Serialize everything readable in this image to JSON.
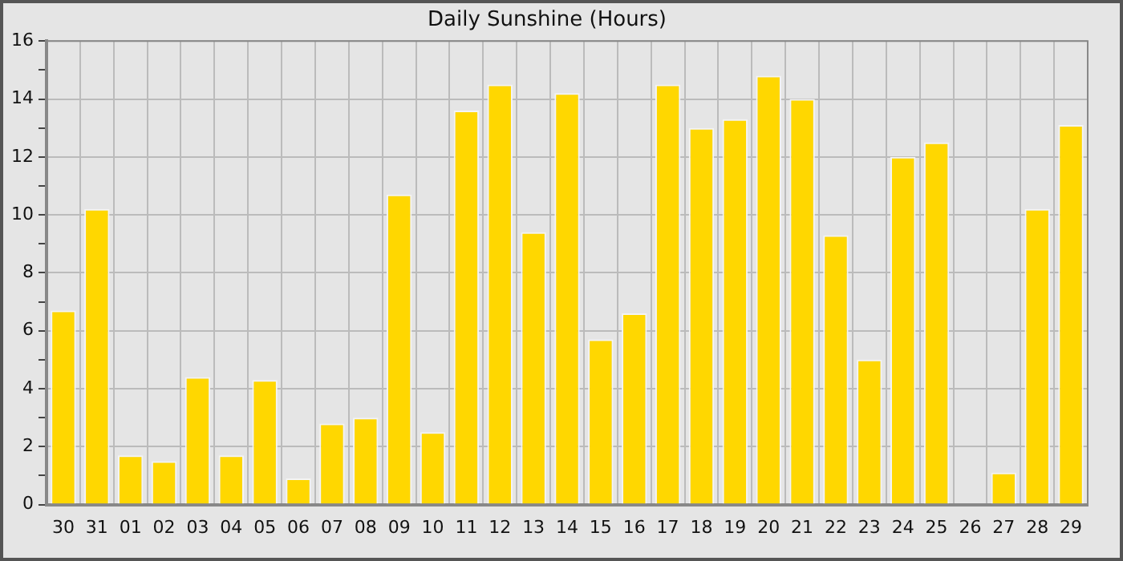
{
  "chart_data": {
    "type": "bar",
    "title": "Daily Sunshine (Hours)",
    "categories": [
      "30",
      "31",
      "01",
      "02",
      "03",
      "04",
      "05",
      "06",
      "07",
      "08",
      "09",
      "10",
      "11",
      "12",
      "13",
      "14",
      "15",
      "16",
      "17",
      "18",
      "19",
      "20",
      "21",
      "22",
      "23",
      "24",
      "25",
      "26",
      "27",
      "28",
      "29"
    ],
    "values": [
      6.7,
      10.2,
      1.7,
      1.5,
      4.4,
      1.7,
      4.3,
      0.9,
      2.8,
      3.0,
      10.7,
      2.5,
      13.6,
      14.5,
      9.4,
      14.2,
      5.7,
      6.6,
      14.5,
      13.0,
      13.3,
      14.8,
      14.0,
      9.3,
      5.0,
      12.0,
      12.5,
      0,
      1.1,
      10.2,
      13.1
    ],
    "color": "#ffd700",
    "ylim": [
      0,
      16
    ],
    "yticks": [
      0,
      {
        "value": 1,
        "label": null
      },
      2,
      {
        "value": 3,
        "label": null
      },
      4,
      {
        "value": 5,
        "label": null
      },
      6,
      {
        "value": 7,
        "label": null
      },
      8,
      {
        "value": 9,
        "label": null
      },
      10,
      {
        "value": 11,
        "label": null
      },
      12,
      {
        "value": 13,
        "label": null
      },
      14,
      {
        "value": 15,
        "label": null
      },
      16
    ],
    "grid": true
  }
}
